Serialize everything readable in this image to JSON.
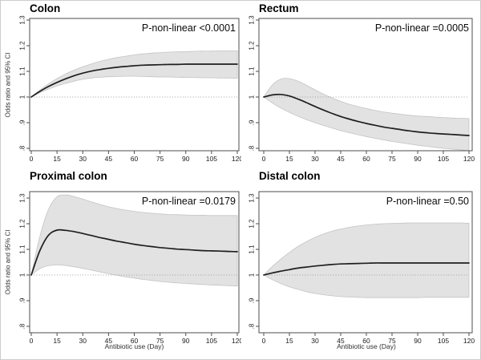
{
  "figure": {
    "ylabel": "Odds ratio and 95% CI",
    "xlabel": "Antibiotic use (Day)",
    "colors": {
      "band_fill": "#e2e2e2",
      "band_edge": "#c4c4c4",
      "line": "#1f1f1f",
      "ref_line": "#a0a0a0",
      "axis": "#4d4d4d",
      "tick_text": "#1a1a1a",
      "background": "#ffffff"
    }
  },
  "chart_data": [
    {
      "type": "line",
      "title": "Colon",
      "annotation": "P-non-linear <0.0001",
      "ylabel": "Odds ratio and 95% CI",
      "xlabel": "",
      "xlim": [
        0,
        120
      ],
      "ylim": [
        0.78,
        1.32
      ],
      "xticks": [
        0,
        15,
        30,
        45,
        60,
        75,
        90,
        105,
        120
      ],
      "ytick_values": [
        0.8,
        0.9,
        1,
        1.1,
        1.2,
        1.3
      ],
      "ytick_labels": [
        ".8",
        ".9",
        "1",
        "1.1",
        "1.2",
        "1.3"
      ],
      "ref_line_y": 1,
      "grid": false,
      "legend": "none",
      "x": [
        0,
        5,
        10,
        15,
        20,
        25,
        30,
        35,
        40,
        45,
        50,
        55,
        60,
        65,
        70,
        75,
        80,
        85,
        90,
        95,
        100,
        105,
        110,
        115,
        120
      ],
      "series": [
        {
          "name": "odds_ratio",
          "values": [
            1.0,
            1.022,
            1.041,
            1.057,
            1.071,
            1.083,
            1.093,
            1.101,
            1.107,
            1.112,
            1.116,
            1.119,
            1.122,
            1.124,
            1.125,
            1.126,
            1.127,
            1.127,
            1.128,
            1.128,
            1.128,
            1.128,
            1.128,
            1.128,
            1.128
          ]
        },
        {
          "name": "upper_95ci",
          "values": [
            1.0,
            1.027,
            1.051,
            1.072,
            1.09,
            1.105,
            1.118,
            1.129,
            1.139,
            1.147,
            1.154,
            1.159,
            1.164,
            1.168,
            1.171,
            1.173,
            1.175,
            1.176,
            1.177,
            1.178,
            1.179,
            1.179,
            1.18,
            1.18,
            1.18
          ]
        },
        {
          "name": "lower_95ci",
          "values": [
            1.0,
            1.017,
            1.031,
            1.043,
            1.053,
            1.062,
            1.069,
            1.074,
            1.077,
            1.079,
            1.08,
            1.081,
            1.081,
            1.08,
            1.079,
            1.078,
            1.078,
            1.077,
            1.076,
            1.076,
            1.075,
            1.075,
            1.074,
            1.074,
            1.073
          ]
        }
      ]
    },
    {
      "type": "line",
      "title": "Rectum",
      "annotation": "P-non-linear =0.0005",
      "ylabel": "",
      "xlabel": "",
      "xlim": [
        0,
        120
      ],
      "ylim": [
        0.78,
        1.32
      ],
      "xticks": [
        0,
        15,
        30,
        45,
        60,
        75,
        90,
        105,
        120
      ],
      "ytick_values": [
        0.8,
        0.9,
        1,
        1.1,
        1.2,
        1.3
      ],
      "ytick_labels": [
        ".8",
        ".9",
        "1",
        "1.1",
        "1.2",
        "1.3"
      ],
      "ref_line_y": 1,
      "grid": false,
      "legend": "none",
      "x": [
        0,
        5,
        10,
        15,
        20,
        25,
        30,
        35,
        40,
        45,
        50,
        55,
        60,
        65,
        70,
        75,
        80,
        85,
        90,
        95,
        100,
        105,
        110,
        115,
        120
      ],
      "series": [
        {
          "name": "odds_ratio",
          "values": [
            1.0,
            1.008,
            1.01,
            1.004,
            0.992,
            0.978,
            0.963,
            0.949,
            0.936,
            0.924,
            0.914,
            0.905,
            0.897,
            0.89,
            0.883,
            0.878,
            0.873,
            0.868,
            0.864,
            0.861,
            0.858,
            0.856,
            0.854,
            0.852,
            0.85
          ]
        },
        {
          "name": "upper_95ci",
          "values": [
            1.0,
            1.047,
            1.07,
            1.072,
            1.062,
            1.046,
            1.028,
            1.011,
            0.996,
            0.983,
            0.972,
            0.963,
            0.955,
            0.948,
            0.942,
            0.937,
            0.933,
            0.929,
            0.926,
            0.924,
            0.922,
            0.92,
            0.918,
            0.917,
            0.916
          ]
        },
        {
          "name": "lower_95ci",
          "values": [
            1.0,
            0.977,
            0.957,
            0.94,
            0.925,
            0.912,
            0.9,
            0.889,
            0.879,
            0.869,
            0.861,
            0.853,
            0.846,
            0.839,
            0.833,
            0.827,
            0.822,
            0.817,
            0.812,
            0.808,
            0.804,
            0.8,
            0.797,
            0.794,
            0.791
          ]
        }
      ]
    },
    {
      "type": "line",
      "title": "Proximal colon",
      "annotation": "P-non-linear =0.0179",
      "ylabel": "Odds ratio and 95% CI",
      "xlabel": "Antibiotic use (Day)",
      "xlim": [
        0,
        120
      ],
      "ylim": [
        0.775,
        1.325
      ],
      "xticks": [
        0,
        15,
        30,
        45,
        60,
        75,
        90,
        105,
        120
      ],
      "ytick_values": [
        0.8,
        0.9,
        1,
        1.1,
        1.2,
        1.3
      ],
      "ytick_labels": [
        ".8",
        ".9",
        "1",
        "1.1",
        "1.2",
        "1.3"
      ],
      "ref_line_y": 1,
      "grid": false,
      "legend": "none",
      "x": [
        0,
        5,
        10,
        15,
        20,
        25,
        30,
        35,
        40,
        45,
        50,
        55,
        60,
        65,
        70,
        75,
        80,
        85,
        90,
        95,
        100,
        105,
        110,
        115,
        120
      ],
      "series": [
        {
          "name": "odds_ratio",
          "values": [
            1.0,
            1.095,
            1.155,
            1.175,
            1.174,
            1.169,
            1.162,
            1.154,
            1.146,
            1.139,
            1.132,
            1.126,
            1.12,
            1.115,
            1.111,
            1.107,
            1.104,
            1.101,
            1.099,
            1.097,
            1.095,
            1.094,
            1.093,
            1.092,
            1.091
          ]
        },
        {
          "name": "upper_95ci",
          "values": [
            1.0,
            1.15,
            1.255,
            1.305,
            1.312,
            1.306,
            1.296,
            1.285,
            1.275,
            1.266,
            1.259,
            1.253,
            1.248,
            1.244,
            1.241,
            1.238,
            1.236,
            1.235,
            1.234,
            1.233,
            1.233,
            1.232,
            1.232,
            1.232,
            1.232
          ]
        },
        {
          "name": "lower_95ci",
          "values": [
            1.0,
            1.025,
            1.036,
            1.039,
            1.037,
            1.032,
            1.026,
            1.019,
            1.012,
            1.005,
            0.999,
            0.993,
            0.988,
            0.983,
            0.979,
            0.975,
            0.972,
            0.969,
            0.967,
            0.965,
            0.963,
            0.961,
            0.96,
            0.958,
            0.957
          ]
        }
      ]
    },
    {
      "type": "line",
      "title": "Distal colon",
      "annotation": "P-non-linear =0.50",
      "ylabel": "",
      "xlabel": "Antibiotic use (Day)",
      "xlim": [
        0,
        120
      ],
      "ylim": [
        0.775,
        1.325
      ],
      "xticks": [
        0,
        15,
        30,
        45,
        60,
        75,
        90,
        105,
        120
      ],
      "ytick_values": [
        0.8,
        0.9,
        1,
        1.1,
        1.2,
        1.3
      ],
      "ytick_labels": [
        ".8",
        ".9",
        "1",
        "1.1",
        "1.2",
        "1.3"
      ],
      "ref_line_y": 1,
      "grid": false,
      "legend": "none",
      "x": [
        0,
        5,
        10,
        15,
        20,
        25,
        30,
        35,
        40,
        45,
        50,
        55,
        60,
        65,
        70,
        75,
        80,
        85,
        90,
        95,
        100,
        105,
        110,
        115,
        120
      ],
      "series": [
        {
          "name": "odds_ratio",
          "values": [
            1.0,
            1.008,
            1.015,
            1.021,
            1.027,
            1.031,
            1.035,
            1.038,
            1.041,
            1.043,
            1.044,
            1.045,
            1.046,
            1.047,
            1.047,
            1.047,
            1.047,
            1.047,
            1.047,
            1.047,
            1.047,
            1.047,
            1.047,
            1.047,
            1.047
          ]
        },
        {
          "name": "upper_95ci",
          "values": [
            1.0,
            1.033,
            1.062,
            1.088,
            1.111,
            1.13,
            1.147,
            1.16,
            1.171,
            1.179,
            1.186,
            1.191,
            1.195,
            1.198,
            1.2,
            1.201,
            1.202,
            1.203,
            1.203,
            1.203,
            1.203,
            1.203,
            1.203,
            1.203,
            1.202
          ]
        },
        {
          "name": "lower_95ci",
          "values": [
            1.0,
            0.982,
            0.967,
            0.954,
            0.944,
            0.935,
            0.928,
            0.923,
            0.919,
            0.916,
            0.914,
            0.913,
            0.912,
            0.912,
            0.912,
            0.912,
            0.912,
            0.912,
            0.912,
            0.913,
            0.913,
            0.913,
            0.913,
            0.913,
            0.913
          ]
        }
      ]
    }
  ]
}
